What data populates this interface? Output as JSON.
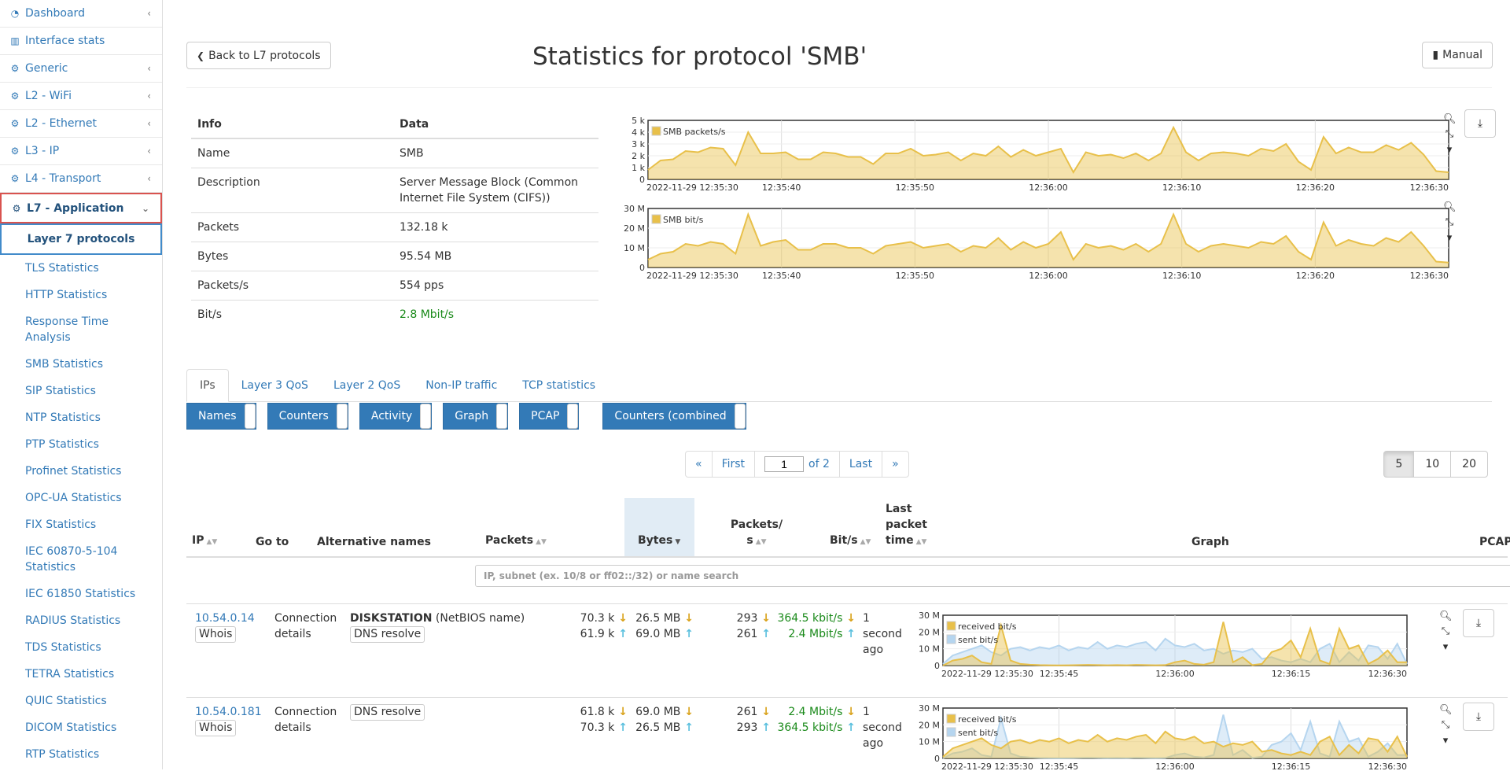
{
  "sidebar": {
    "items": [
      {
        "icon": "dashboard-icon",
        "label": "Dashboard",
        "chevron": true
      },
      {
        "icon": "bar-chart-icon",
        "label": "Interface stats",
        "chevron": false
      },
      {
        "icon": "gear-icon",
        "label": "Generic",
        "chevron": true
      },
      {
        "icon": "gear-icon",
        "label": "L2 - WiFi",
        "chevron": true
      },
      {
        "icon": "gear-icon",
        "label": "L2 - Ethernet",
        "chevron": true
      },
      {
        "icon": "gear-icon",
        "label": "L3 - IP",
        "chevron": true
      },
      {
        "icon": "gear-icon",
        "label": "L4 - Transport",
        "chevron": true
      }
    ],
    "active": {
      "icon": "gear-icon",
      "label": "L7 - Application"
    },
    "selected_sub": "Layer 7 protocols",
    "children": [
      "TLS Statistics",
      "HTTP Statistics",
      "Response Time Analysis",
      "SMB Statistics",
      "SIP Statistics",
      "NTP Statistics",
      "PTP Statistics",
      "Profinet Statistics",
      "OPC-UA Statistics",
      "FIX Statistics",
      "IEC 60870-5-104 Statistics",
      "IEC 61850 Statistics",
      "RADIUS Statistics",
      "TDS Statistics",
      "TETRA Statistics",
      "QUIC Statistics",
      "DICOM Statistics",
      "RTP Statistics"
    ]
  },
  "header": {
    "back_label": "Back to L7 protocols",
    "title": "Statistics for protocol 'SMB'",
    "manual_label": "Manual"
  },
  "info": {
    "col_info": "Info",
    "col_data": "Data",
    "rows": [
      {
        "k": "Name",
        "v": "SMB"
      },
      {
        "k": "Description",
        "v": "Server Message Block (Common Internet File System (CIFS))"
      },
      {
        "k": "Packets",
        "v": "132.18 k"
      },
      {
        "k": "Bytes",
        "v": "95.54 MB"
      },
      {
        "k": "Packets/s",
        "v": "554 pps"
      },
      {
        "k": "Bit/s",
        "v": "2.8 Mbit/s"
      }
    ]
  },
  "charts_time_labels": [
    "2022-11-29 12:35:30",
    "12:35:40",
    "12:35:50",
    "12:36:00",
    "12:36:10",
    "12:36:20",
    "12:36:30"
  ],
  "row_time_labels": [
    "2022-11-29 12:35:30",
    "12:35:45",
    "12:36:00",
    "12:36:15",
    "12:36:30"
  ],
  "chart_data": [
    {
      "type": "area",
      "legend": "SMB packets/s",
      "y_ticks": [
        "5 k",
        "4 k",
        "3 k",
        "2 k",
        "1 k",
        "0"
      ],
      "ylim": [
        0,
        5000
      ],
      "color": "#e8c04a",
      "values": [
        800,
        1600,
        1700,
        2400,
        2300,
        2700,
        2600,
        1200,
        4000,
        2200,
        2200,
        2300,
        1700,
        1700,
        2300,
        2200,
        1900,
        1900,
        1300,
        2200,
        2200,
        2600,
        2000,
        2100,
        2300,
        1600,
        2200,
        2000,
        2800,
        1900,
        2500,
        2000,
        2300,
        2600,
        600,
        2300,
        2000,
        2100,
        1800,
        2200,
        1600,
        2200,
        4400,
        2300,
        1600,
        2200,
        2300,
        2200,
        2000,
        2600,
        2400,
        3000,
        1500,
        800,
        3600,
        2200,
        2700,
        2300,
        2300,
        2900,
        2500,
        3100,
        2100,
        700,
        600
      ]
    },
    {
      "type": "area",
      "legend": "SMB bit/s",
      "y_ticks": [
        "30 M",
        "20 M",
        "10 M",
        "0"
      ],
      "ylim": [
        0,
        30000000
      ],
      "color": "#e8c04a",
      "values": [
        4000000,
        7000000,
        8000000,
        12000000,
        11000000,
        13000000,
        12000000,
        7000000,
        27000000,
        11000000,
        13000000,
        14000000,
        9000000,
        9000000,
        12000000,
        12000000,
        10000000,
        10000000,
        7000000,
        11000000,
        12000000,
        13000000,
        10000000,
        11000000,
        12000000,
        8000000,
        11000000,
        10000000,
        15000000,
        9000000,
        13000000,
        10000000,
        12000000,
        18000000,
        4000000,
        12000000,
        10000000,
        11000000,
        9000000,
        12000000,
        8000000,
        12000000,
        27000000,
        12000000,
        8000000,
        11000000,
        12000000,
        11000000,
        10000000,
        13000000,
        12000000,
        16000000,
        8000000,
        4000000,
        23000000,
        11000000,
        14000000,
        12000000,
        11000000,
        15000000,
        13000000,
        18000000,
        11000000,
        3000000,
        2500000
      ]
    },
    {
      "type": "area",
      "series": [
        {
          "name": "received bit/s",
          "color": "#e8c04a",
          "values": [
            0,
            3000000,
            4000000,
            6000000,
            2000000,
            1000000,
            24000000,
            3000000,
            1000000,
            500000,
            300000,
            200000,
            100000,
            200000,
            300000,
            400000,
            300000,
            200000,
            300000,
            200000,
            400000,
            300000,
            200000,
            300000,
            2000000,
            3000000,
            1000000,
            500000,
            2000000,
            26000000,
            2000000,
            5000000,
            300000,
            1000000,
            8000000,
            10000000,
            15000000,
            5000000,
            22000000,
            3000000,
            1000000,
            22000000,
            10000000,
            12000000,
            1000000,
            4000000,
            9000000,
            2000000,
            2000000
          ]
        },
        {
          "name": "sent bit/s",
          "color": "#b5d5ef",
          "values": [
            1000000,
            6000000,
            8000000,
            10000000,
            12000000,
            8000000,
            6000000,
            10000000,
            11000000,
            9000000,
            11000000,
            10000000,
            12000000,
            9000000,
            11000000,
            10000000,
            14000000,
            10000000,
            12000000,
            11000000,
            13000000,
            14000000,
            9000000,
            16000000,
            12000000,
            11000000,
            13000000,
            9000000,
            10000000,
            7000000,
            9000000,
            8000000,
            10000000,
            4000000,
            5000000,
            3000000,
            2000000,
            4000000,
            2000000,
            10000000,
            13000000,
            2000000,
            8000000,
            3000000,
            12000000,
            11000000,
            4000000,
            13000000,
            1000000
          ]
        }
      ],
      "y_ticks": [
        "30 M",
        "20 M",
        "10 M",
        "0"
      ],
      "ylim": [
        0,
        30000000
      ]
    },
    {
      "type": "area",
      "series": [
        {
          "name": "received bit/s",
          "color": "#e8c04a",
          "values": [
            1000000,
            6000000,
            8000000,
            10000000,
            12000000,
            8000000,
            6000000,
            10000000,
            11000000,
            9000000,
            11000000,
            10000000,
            12000000,
            9000000,
            11000000,
            10000000,
            14000000,
            10000000,
            12000000,
            11000000,
            13000000,
            14000000,
            9000000,
            16000000,
            12000000,
            11000000,
            13000000,
            9000000,
            10000000,
            7000000,
            9000000,
            8000000,
            10000000,
            4000000,
            5000000,
            3000000,
            2000000,
            4000000,
            2000000,
            10000000,
            13000000,
            2000000,
            8000000,
            3000000,
            12000000,
            11000000,
            4000000,
            13000000,
            1000000
          ]
        },
        {
          "name": "sent bit/s",
          "color": "#b5d5ef",
          "values": [
            0,
            3000000,
            4000000,
            6000000,
            2000000,
            1000000,
            24000000,
            3000000,
            1000000,
            500000,
            300000,
            200000,
            100000,
            200000,
            300000,
            400000,
            300000,
            200000,
            300000,
            200000,
            400000,
            300000,
            200000,
            300000,
            2000000,
            3000000,
            1000000,
            500000,
            2000000,
            26000000,
            2000000,
            5000000,
            300000,
            1000000,
            8000000,
            10000000,
            15000000,
            5000000,
            22000000,
            3000000,
            1000000,
            22000000,
            10000000,
            12000000,
            1000000,
            4000000,
            9000000,
            2000000,
            2000000
          ]
        }
      ],
      "y_ticks": [
        "30 M",
        "20 M",
        "10 M",
        "0"
      ],
      "ylim": [
        0,
        30000000
      ]
    }
  ],
  "tabs": [
    "IPs",
    "Layer 3 QoS",
    "Layer 2 QoS",
    "Non-IP traffic",
    "TCP statistics"
  ],
  "toggles": [
    "Names",
    "Counters",
    "Activity",
    "Graph",
    "PCAP",
    "Counters (combined"
  ],
  "pager": {
    "prev": "«",
    "first": "First",
    "page": "1",
    "of": "of 2",
    "last": "Last",
    "next": "»"
  },
  "page_sizes": [
    "5",
    "10",
    "20"
  ],
  "hosts": {
    "headers": {
      "ip": "IP",
      "goto": "Go to",
      "alt": "Alternative names",
      "packets": "Packets",
      "bytes": "Bytes",
      "pps": "Packets/ s",
      "bits": "Bit/s",
      "last": "Last packet time",
      "graph": "Graph",
      "pcap": "PCAP"
    },
    "search_placeholder": "IP, subnet (ex. 10/8 or ff02::/32) or name search",
    "rows": [
      {
        "ip": "10.54.0.14",
        "whois": "Whois",
        "goto": "Connection details",
        "alt_name": "DISKSTATION",
        "alt_type": "(NetBIOS name)",
        "dns": "DNS resolve",
        "pk_rx": "70.3 k",
        "pk_tx": "61.9 k",
        "by_rx": "26.5 MB",
        "by_tx": "69.0 MB",
        "pps_rx": "293",
        "pps_tx": "261",
        "bit_rx": "364.5 kbit/s",
        "bit_tx": "2.4 Mbit/s",
        "last": "1 second ago"
      },
      {
        "ip": "10.54.0.181",
        "whois": "Whois",
        "goto": "Connection details",
        "alt_name": "",
        "alt_type": "",
        "dns": "DNS resolve",
        "pk_rx": "61.8 k",
        "pk_tx": "70.3 k",
        "by_rx": "69.0 MB",
        "by_tx": "26.5 MB",
        "pps_rx": "261",
        "pps_tx": "293",
        "bit_rx": "2.4 Mbit/s",
        "bit_tx": "364.5 kbit/s",
        "last": "1 second ago"
      }
    ]
  }
}
